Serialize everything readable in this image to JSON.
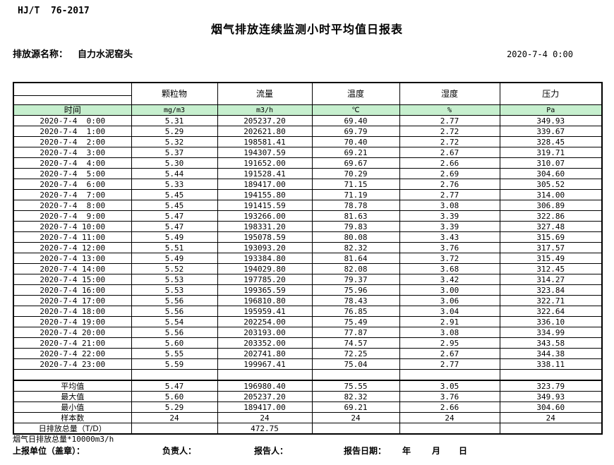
{
  "page": {
    "standard": "HJ/T  76-2017",
    "title": "烟气排放连续监测小时平均值日报表",
    "source_label": "排放源名称：",
    "source_name": "自力水泥窑头",
    "datetime": "2020-7-4 0:00"
  },
  "table": {
    "header_fill": "#C6EFCE",
    "time_header": "时间",
    "columns": [
      {
        "name": "颗粒物",
        "unit": "mg/m3"
      },
      {
        "name": "流量",
        "unit": "m3/h"
      },
      {
        "name": "温度",
        "unit": "℃"
      },
      {
        "name": "湿度",
        "unit": "%"
      },
      {
        "name": "压力",
        "unit": "Pa"
      }
    ],
    "rows": [
      {
        "time": "2020-7-4  0:00",
        "values": [
          "5.31",
          "205237.20",
          "69.40",
          "2.77",
          "349.93"
        ]
      },
      {
        "time": "2020-7-4  1:00",
        "values": [
          "5.29",
          "202621.80",
          "69.79",
          "2.72",
          "339.67"
        ]
      },
      {
        "time": "2020-7-4  2:00",
        "values": [
          "5.32",
          "198581.41",
          "70.40",
          "2.72",
          "328.45"
        ]
      },
      {
        "time": "2020-7-4  3:00",
        "values": [
          "5.37",
          "194307.59",
          "69.21",
          "2.67",
          "319.71"
        ]
      },
      {
        "time": "2020-7-4  4:00",
        "values": [
          "5.30",
          "191652.00",
          "69.67",
          "2.66",
          "310.07"
        ]
      },
      {
        "time": "2020-7-4  5:00",
        "values": [
          "5.44",
          "191528.41",
          "70.29",
          "2.69",
          "304.60"
        ]
      },
      {
        "time": "2020-7-4  6:00",
        "values": [
          "5.33",
          "189417.00",
          "71.15",
          "2.76",
          "305.52"
        ]
      },
      {
        "time": "2020-7-4  7:00",
        "values": [
          "5.45",
          "194155.80",
          "71.19",
          "2.77",
          "314.00"
        ]
      },
      {
        "time": "2020-7-4  8:00",
        "values": [
          "5.45",
          "191415.59",
          "78.78",
          "3.08",
          "306.89"
        ]
      },
      {
        "time": "2020-7-4  9:00",
        "values": [
          "5.47",
          "193266.00",
          "81.63",
          "3.39",
          "322.86"
        ]
      },
      {
        "time": "2020-7-4 10:00",
        "values": [
          "5.47",
          "198331.20",
          "79.83",
          "3.39",
          "327.48"
        ]
      },
      {
        "time": "2020-7-4 11:00",
        "values": [
          "5.49",
          "195078.59",
          "80.08",
          "3.43",
          "315.69"
        ]
      },
      {
        "time": "2020-7-4 12:00",
        "values": [
          "5.51",
          "193093.20",
          "82.32",
          "3.76",
          "317.57"
        ]
      },
      {
        "time": "2020-7-4 13:00",
        "values": [
          "5.49",
          "193384.80",
          "81.64",
          "3.72",
          "315.49"
        ]
      },
      {
        "time": "2020-7-4 14:00",
        "values": [
          "5.52",
          "194029.80",
          "82.08",
          "3.68",
          "312.45"
        ]
      },
      {
        "time": "2020-7-4 15:00",
        "values": [
          "5.53",
          "197785.20",
          "79.37",
          "3.42",
          "314.27"
        ]
      },
      {
        "time": "2020-7-4 16:00",
        "values": [
          "5.53",
          "199365.59",
          "75.96",
          "3.00",
          "323.84"
        ]
      },
      {
        "time": "2020-7-4 17:00",
        "values": [
          "5.56",
          "196810.80",
          "78.43",
          "3.06",
          "322.71"
        ]
      },
      {
        "time": "2020-7-4 18:00",
        "values": [
          "5.56",
          "195959.41",
          "76.85",
          "3.04",
          "322.64"
        ]
      },
      {
        "time": "2020-7-4 19:00",
        "values": [
          "5.54",
          "202254.00",
          "75.49",
          "2.91",
          "336.10"
        ]
      },
      {
        "time": "2020-7-4 20:00",
        "values": [
          "5.56",
          "203193.00",
          "77.87",
          "3.08",
          "334.99"
        ]
      },
      {
        "time": "2020-7-4 21:00",
        "values": [
          "5.60",
          "203352.00",
          "74.57",
          "2.95",
          "343.58"
        ]
      },
      {
        "time": "2020-7-4 22:00",
        "values": [
          "5.55",
          "202741.80",
          "72.25",
          "2.67",
          "344.38"
        ]
      },
      {
        "time": "2020-7-4 23:00",
        "values": [
          "5.59",
          "199967.41",
          "75.04",
          "2.77",
          "338.11"
        ]
      }
    ],
    "summary": [
      {
        "label": "平均值",
        "values": [
          "5.47",
          "196980.40",
          "75.55",
          "3.05",
          "323.79"
        ]
      },
      {
        "label": "最大值",
        "values": [
          "5.60",
          "205237.20",
          "82.32",
          "3.76",
          "349.93"
        ]
      },
      {
        "label": "最小值",
        "values": [
          "5.29",
          "189417.00",
          "69.21",
          "2.66",
          "304.60"
        ]
      },
      {
        "label": "样本数",
        "values": [
          "24",
          "24",
          "24",
          "24",
          "24"
        ]
      },
      {
        "label": "日排放总量（T/D）",
        "values": [
          "",
          "472.75",
          "",
          "",
          ""
        ]
      }
    ]
  },
  "footer": {
    "note": "烟气日排放总量*10000m3/h",
    "unit_label": "上报单位（盖章）：",
    "responsible_label": "负责人：",
    "reporter_label": "报告人：",
    "report_date_label": "报告日期：",
    "year_label": "年",
    "month_label": "月",
    "day_label": "日"
  }
}
